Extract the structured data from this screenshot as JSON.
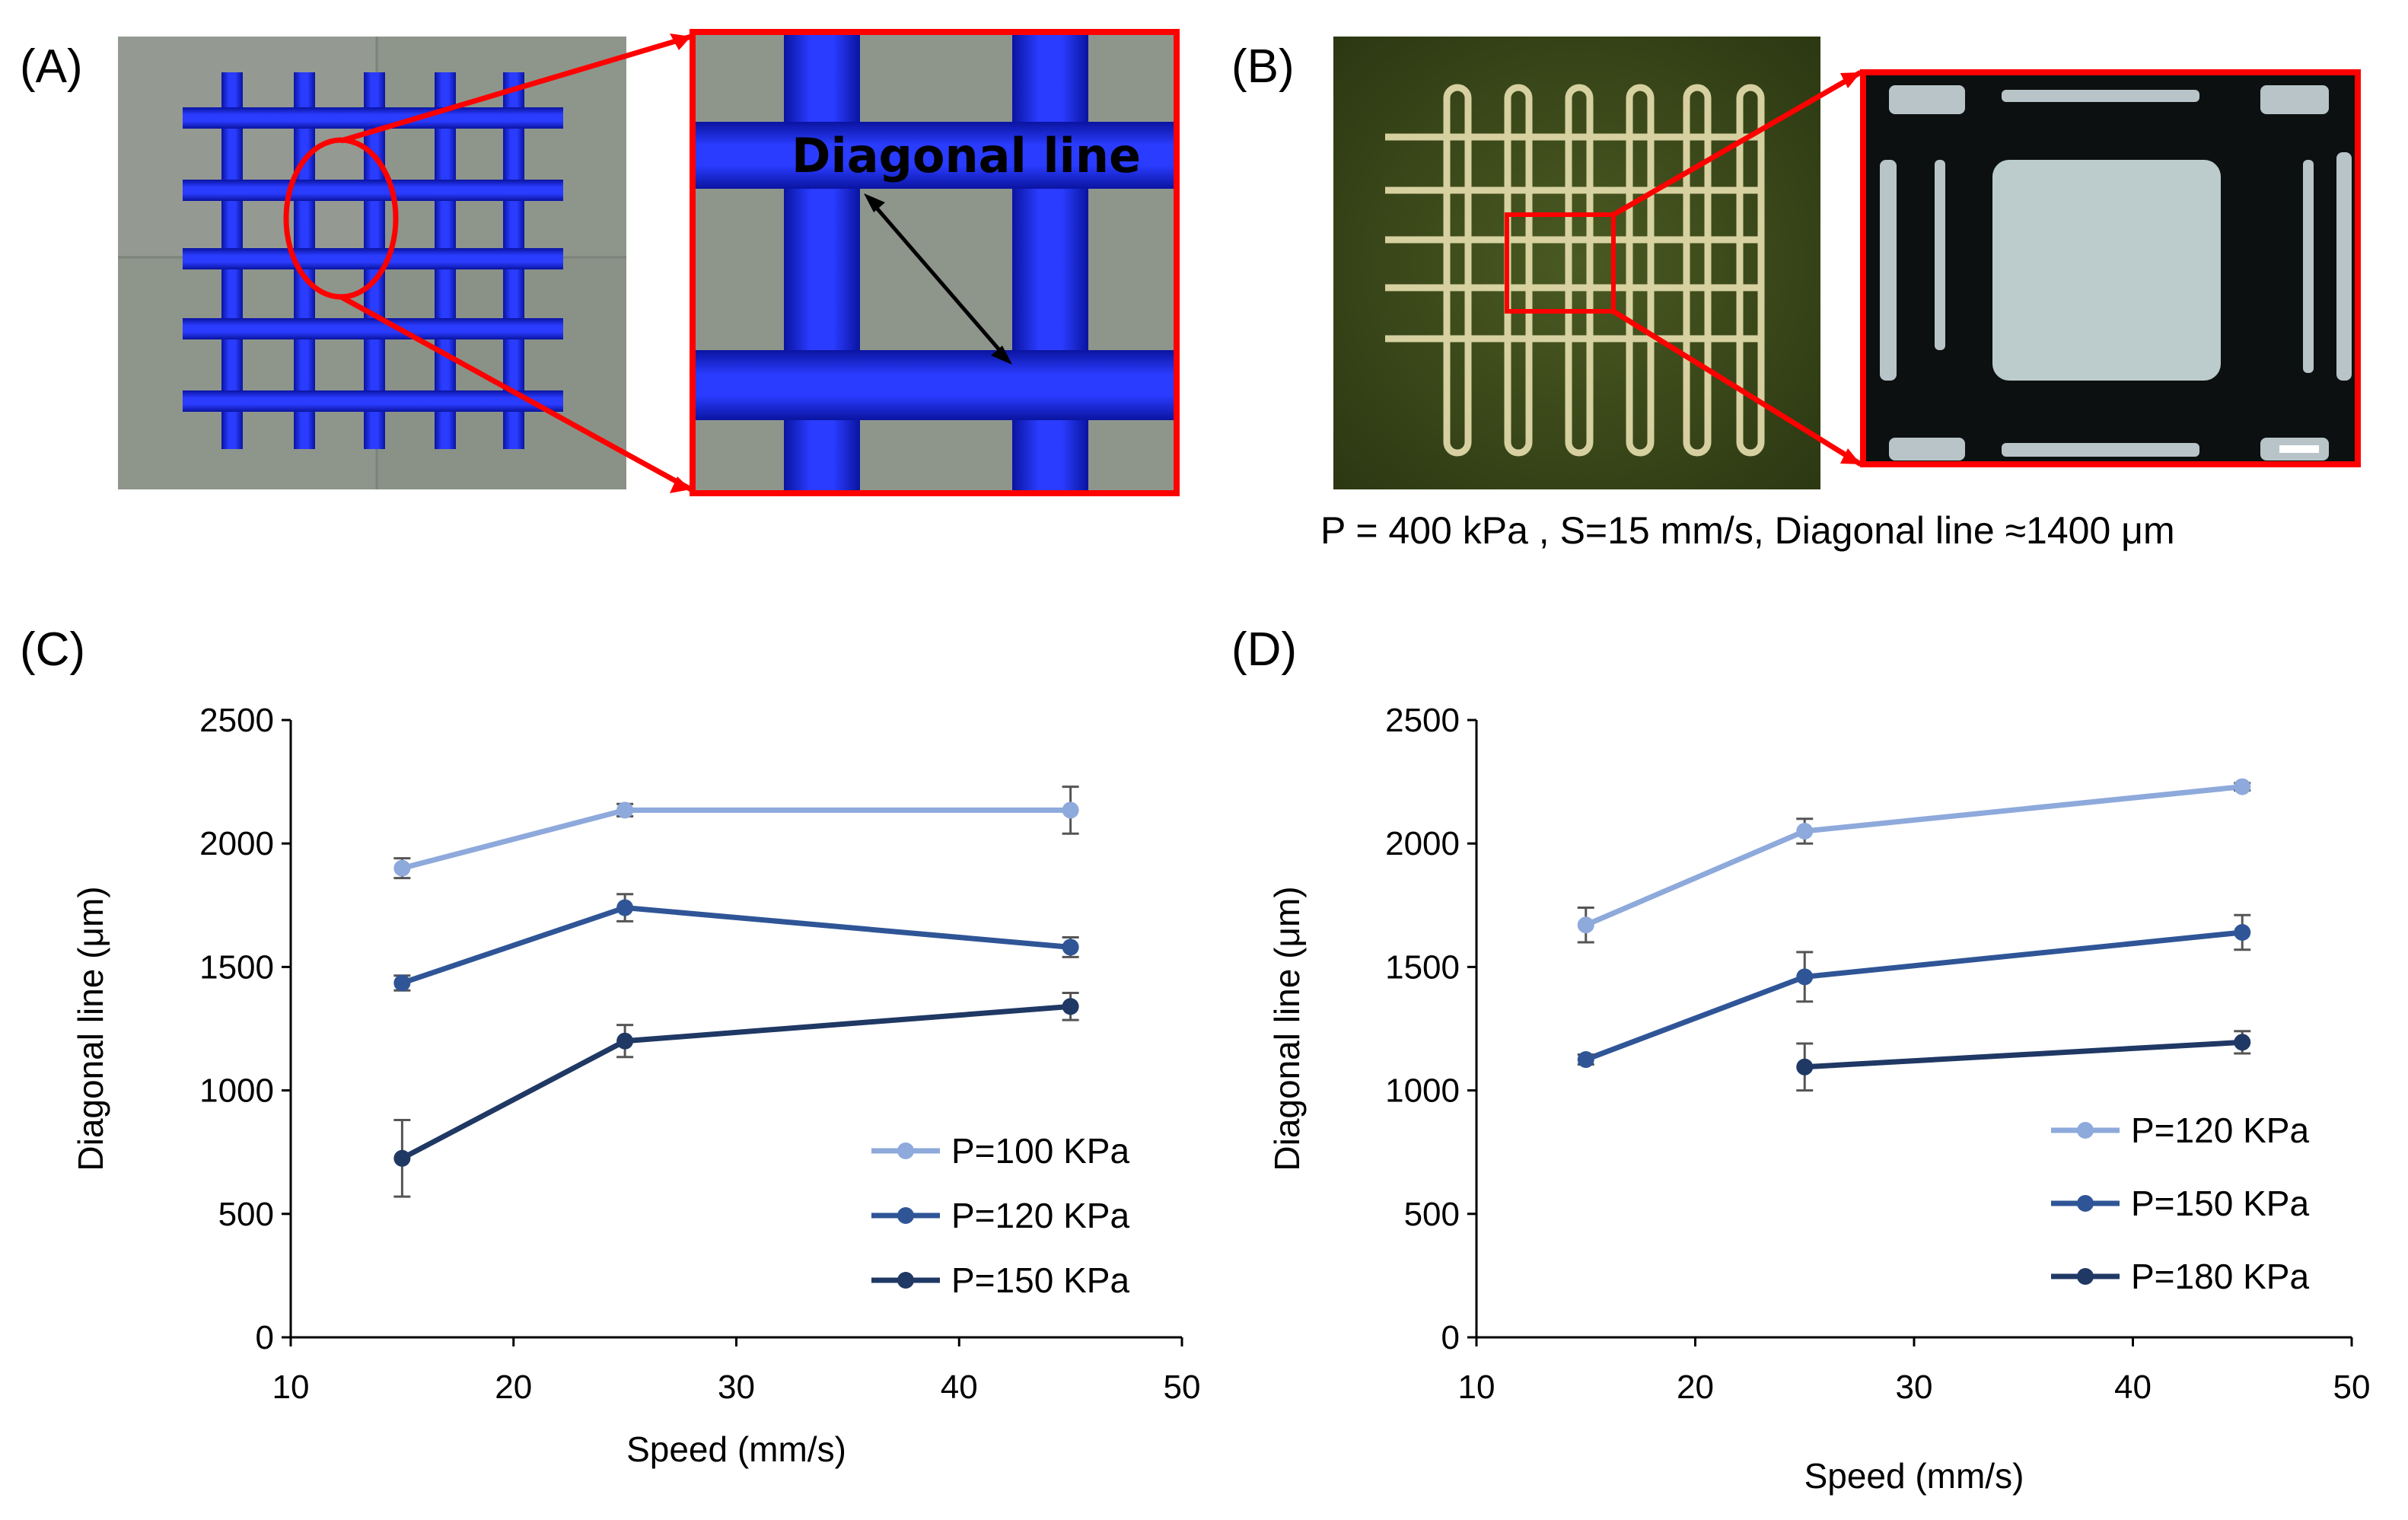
{
  "panels": {
    "a_label": "(A)",
    "b_label": "(B)",
    "c_label": "(C)",
    "d_label": "(D)"
  },
  "panel_a": {
    "zoom_label": "Diagonal line"
  },
  "panel_b": {
    "caption": "P = 400 kPa , S=15 mm/s, Diagonal line ≈1400 μm"
  },
  "colors": {
    "light": "#8EA9DB",
    "mid": "#2F5597",
    "dark": "#1F3864",
    "highlight": "#FF0000",
    "mesh": "#1A28E6"
  },
  "chart_data": [
    {
      "type": "line",
      "panel": "C",
      "xlabel": "Speed (mm/s)",
      "ylabel": "Diagonal line (μm)",
      "xlim": [
        10,
        50
      ],
      "ylim": [
        0,
        2500
      ],
      "xticks": [
        "10",
        "20",
        "30",
        "40",
        "50"
      ],
      "yticks": [
        "0",
        "500",
        "1000",
        "1500",
        "2000",
        "2500"
      ],
      "legend_position": "bottom-right",
      "series": [
        {
          "name": "P=100 KPa",
          "color": "#8EA9DB",
          "x": [
            15,
            25,
            45
          ],
          "y": [
            1900,
            2135,
            2135
          ],
          "err": [
            40,
            25,
            95
          ]
        },
        {
          "name": "P=120 KPa",
          "color": "#2F5597",
          "x": [
            15,
            25,
            45
          ],
          "y": [
            1435,
            1740,
            1580
          ],
          "err": [
            30,
            55,
            40
          ]
        },
        {
          "name": "P=150 KPa",
          "color": "#1F3864",
          "x": [
            15,
            25,
            45
          ],
          "y": [
            725,
            1200,
            1340
          ],
          "err": [
            155,
            65,
            55
          ]
        }
      ]
    },
    {
      "type": "line",
      "panel": "D",
      "xlabel": "Speed (mm/s)",
      "ylabel": "Diagonal line (μm)",
      "xlim": [
        10,
        50
      ],
      "ylim": [
        0,
        2500
      ],
      "xticks": [
        "10",
        "20",
        "30",
        "40",
        "50"
      ],
      "yticks": [
        "0",
        "500",
        "1000",
        "1500",
        "2000",
        "2500"
      ],
      "legend_position": "bottom-right",
      "series": [
        {
          "name": "P=120 KPa",
          "color": "#8EA9DB",
          "x": [
            15,
            25,
            45
          ],
          "y": [
            1670,
            2050,
            2230
          ],
          "err": [
            70,
            50,
            15
          ]
        },
        {
          "name": "P=150 KPa",
          "color": "#2F5597",
          "x": [
            15,
            25,
            45
          ],
          "y": [
            1125,
            1460,
            1640
          ],
          "err": [
            20,
            100,
            70
          ]
        },
        {
          "name": "P=180 KPa",
          "color": "#1F3864",
          "x": [
            25,
            45
          ],
          "y": [
            1095,
            1195
          ],
          "err": [
            95,
            45
          ]
        }
      ]
    }
  ]
}
